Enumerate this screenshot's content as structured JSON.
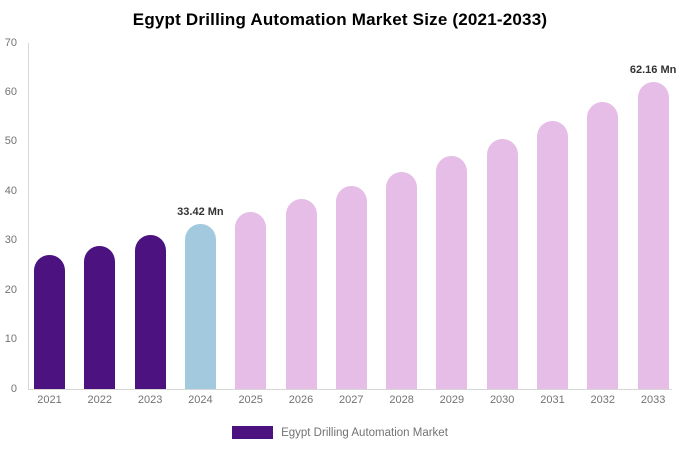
{
  "title": "Egypt Drilling Automation Market Size (2021-2033)",
  "legend": {
    "label": "Egypt Drilling Automation Market",
    "swatch_color": "#4b1280"
  },
  "colors": {
    "historical_bar": "#4b1280",
    "base_year_bar": "#a2c9dd",
    "forecast_bar": "#e5bde7",
    "axis_text": "#737373",
    "axis_line": "#d6d6d6",
    "annotation_text": "#333333",
    "title_text": "#000000"
  },
  "chart_data": {
    "type": "bar",
    "title": "Egypt Drilling Automation Market Size (2021-2033)",
    "unit": "Mn",
    "categories": [
      "2021",
      "2022",
      "2023",
      "2024",
      "2025",
      "2026",
      "2027",
      "2028",
      "2029",
      "2030",
      "2031",
      "2032",
      "2033"
    ],
    "values": [
      27.1,
      29.0,
      31.2,
      33.42,
      35.8,
      38.4,
      41.1,
      44.0,
      47.2,
      50.5,
      54.2,
      58.0,
      62.16
    ],
    "bar_colors": [
      "#4b1280",
      "#4b1280",
      "#4b1280",
      "#a2c9dd",
      "#e5bde7",
      "#e5bde7",
      "#e5bde7",
      "#e5bde7",
      "#e5bde7",
      "#e5bde7",
      "#e5bde7",
      "#e5bde7",
      "#e5bde7"
    ],
    "annotations": [
      {
        "category": "2024",
        "text": "33.42 Mn"
      },
      {
        "category": "2033",
        "text": "62.16 Mn"
      }
    ],
    "ylim": [
      0,
      70
    ],
    "yticks": [
      0,
      10,
      20,
      30,
      40,
      50,
      60,
      70
    ],
    "xlabel": "",
    "ylabel": "",
    "grid": false,
    "legend_position": "bottom",
    "legend_entries": [
      "Egypt Drilling Automation Market"
    ]
  }
}
